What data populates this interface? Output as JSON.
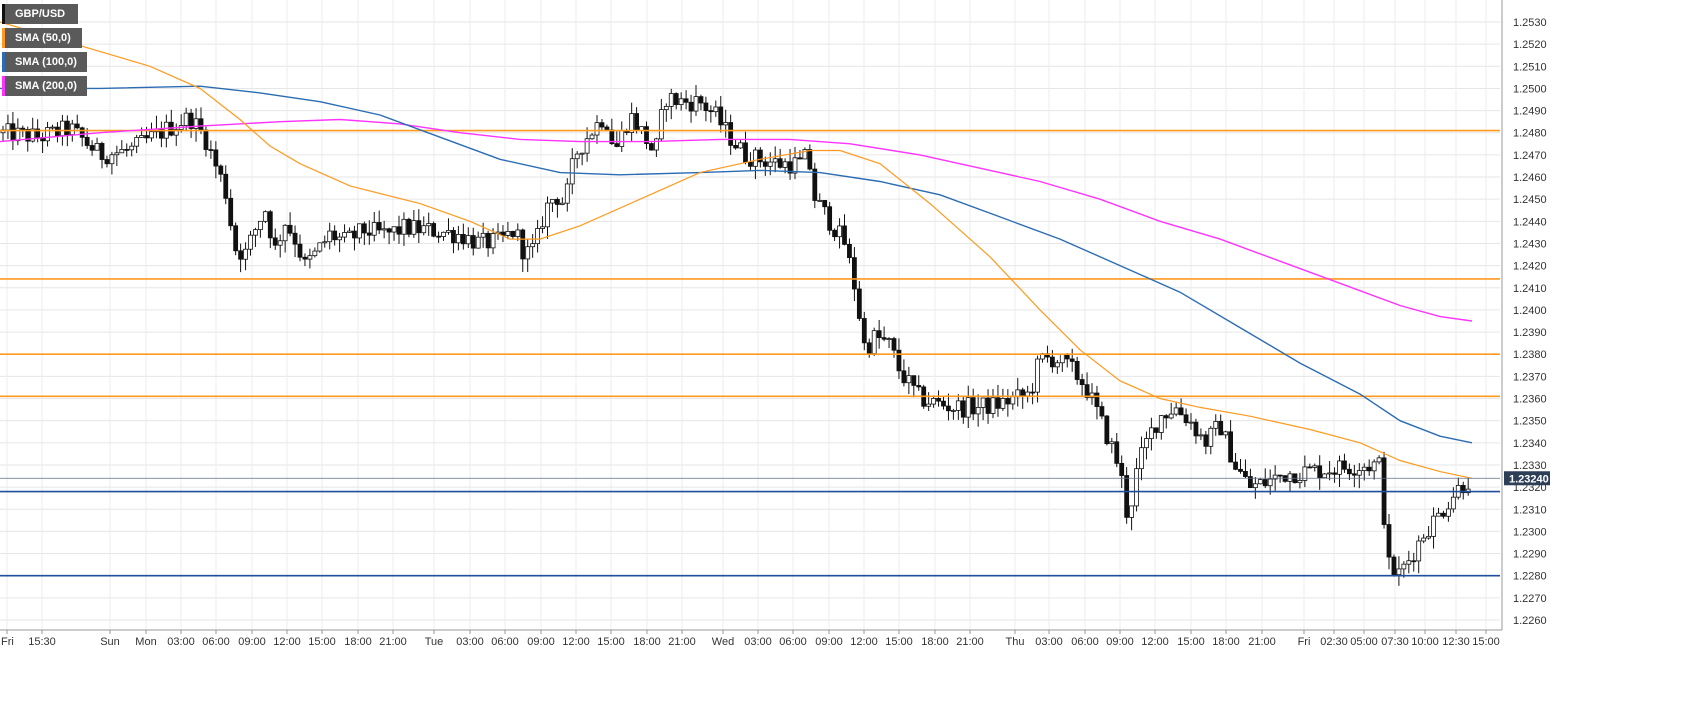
{
  "chart_data": {
    "type": "candlestick",
    "title": "",
    "series": [
      {
        "name": "GBP/USD",
        "color": "#111111"
      },
      {
        "name": "SMA (50,0)",
        "color": "#ff9a1f"
      },
      {
        "name": "SMA (100,0)",
        "color": "#2b6cb3"
      },
      {
        "name": "SMA (200,0)",
        "color": "#ff33ff"
      }
    ],
    "ylim": [
      1.226,
      1.2537
    ],
    "y_ticks": [
      "1.2260",
      "1.2270",
      "1.2280",
      "1.2290",
      "1.2300",
      "1.2310",
      "1.2320",
      "1.2330",
      "1.2340",
      "1.2350",
      "1.2360",
      "1.2370",
      "1.2380",
      "1.2390",
      "1.2400",
      "1.2410",
      "1.2420",
      "1.2430",
      "1.2440",
      "1.2450",
      "1.2460",
      "1.2470",
      "1.2480",
      "1.2490",
      "1.2500",
      "1.2510",
      "1.2520",
      "1.2530"
    ],
    "x_ticks": [
      "Fri",
      "15:30",
      "Sun",
      "Mon",
      "03:00",
      "06:00",
      "09:00",
      "12:00",
      "15:00",
      "18:00",
      "21:00",
      "Tue",
      "03:00",
      "06:00",
      "09:00",
      "12:00",
      "15:00",
      "18:00",
      "21:00",
      "Wed",
      "03:00",
      "06:00",
      "09:00",
      "12:00",
      "15:00",
      "18:00",
      "21:00",
      "Thu",
      "03:00",
      "06:00",
      "09:00",
      "12:00",
      "15:00",
      "18:00",
      "21:00",
      "Fri",
      "02:30",
      "05:00",
      "07:30",
      "10:00",
      "12:30",
      "15:00"
    ],
    "current_price": "1.23240",
    "horizontal_levels": [
      {
        "value": 1.2481,
        "color": "#ff9a1f"
      },
      {
        "value": 1.2414,
        "color": "#ff9a1f"
      },
      {
        "value": 1.238,
        "color": "#ff9a1f"
      },
      {
        "value": 1.2361,
        "color": "#ff9a1f"
      },
      {
        "value": 1.2318,
        "color": "#1f4e9e"
      },
      {
        "value": 1.228,
        "color": "#1f4e9e"
      }
    ],
    "close_path": [
      [
        0,
        1.248
      ],
      [
        40,
        1.2478
      ],
      [
        70,
        1.2482
      ],
      [
        100,
        1.247
      ],
      [
        130,
        1.2472
      ],
      [
        160,
        1.248
      ],
      [
        190,
        1.2487
      ],
      [
        205,
        1.2478
      ],
      [
        215,
        1.2466
      ],
      [
        225,
        1.2455
      ],
      [
        235,
        1.2428
      ],
      [
        245,
        1.2425
      ],
      [
        255,
        1.2436
      ],
      [
        265,
        1.2446
      ],
      [
        275,
        1.2427
      ],
      [
        285,
        1.244
      ],
      [
        295,
        1.2432
      ],
      [
        305,
        1.242
      ],
      [
        315,
        1.2425
      ],
      [
        330,
        1.2434
      ],
      [
        345,
        1.2431
      ],
      [
        365,
        1.2436
      ],
      [
        385,
        1.2434
      ],
      [
        405,
        1.2437
      ],
      [
        430,
        1.2436
      ],
      [
        460,
        1.2434
      ],
      [
        480,
        1.243
      ],
      [
        500,
        1.2431
      ],
      [
        515,
        1.2436
      ],
      [
        525,
        1.2425
      ],
      [
        535,
        1.2428
      ],
      [
        545,
        1.2445
      ],
      [
        555,
        1.2452
      ],
      [
        565,
        1.2448
      ],
      [
        575,
        1.247
      ],
      [
        590,
        1.248
      ],
      [
        605,
        1.2488
      ],
      [
        615,
        1.2472
      ],
      [
        630,
        1.2488
      ],
      [
        645,
        1.2478
      ],
      [
        655,
        1.247
      ],
      [
        665,
        1.2496
      ],
      [
        680,
        1.2494
      ],
      [
        700,
        1.2494
      ],
      [
        715,
        1.2488
      ],
      [
        730,
        1.2478
      ],
      [
        745,
        1.247
      ],
      [
        760,
        1.2468
      ],
      [
        780,
        1.2466
      ],
      [
        800,
        1.2466
      ],
      [
        808,
        1.247
      ],
      [
        815,
        1.245
      ],
      [
        830,
        1.244
      ],
      [
        845,
        1.243
      ],
      [
        855,
        1.241
      ],
      [
        865,
        1.2382
      ],
      [
        875,
        1.2388
      ],
      [
        890,
        1.2384
      ],
      [
        900,
        1.2372
      ],
      [
        910,
        1.2366
      ],
      [
        920,
        1.236
      ],
      [
        935,
        1.2358
      ],
      [
        955,
        1.2356
      ],
      [
        975,
        1.2356
      ],
      [
        995,
        1.2357
      ],
      [
        1015,
        1.236
      ],
      [
        1030,
        1.2362
      ],
      [
        1040,
        1.2378
      ],
      [
        1055,
        1.2378
      ],
      [
        1070,
        1.2374
      ],
      [
        1085,
        1.2366
      ],
      [
        1095,
        1.2356
      ],
      [
        1110,
        1.234
      ],
      [
        1120,
        1.2328
      ],
      [
        1128,
        1.2305
      ],
      [
        1138,
        1.233
      ],
      [
        1150,
        1.2344
      ],
      [
        1160,
        1.2352
      ],
      [
        1175,
        1.2356
      ],
      [
        1190,
        1.235
      ],
      [
        1205,
        1.234
      ],
      [
        1220,
        1.2348
      ],
      [
        1235,
        1.233
      ],
      [
        1250,
        1.232
      ],
      [
        1265,
        1.2322
      ],
      [
        1285,
        1.2326
      ],
      [
        1305,
        1.2327
      ],
      [
        1325,
        1.2328
      ],
      [
        1345,
        1.2329
      ],
      [
        1365,
        1.233
      ],
      [
        1380,
        1.233
      ],
      [
        1388,
        1.2285
      ],
      [
        1398,
        1.228
      ],
      [
        1410,
        1.2288
      ],
      [
        1425,
        1.23
      ],
      [
        1440,
        1.2308
      ],
      [
        1455,
        1.2318
      ],
      [
        1465,
        1.2322
      ],
      [
        1472,
        1.2324
      ]
    ],
    "sma50": [
      [
        0,
        1.253
      ],
      [
        60,
        1.2522
      ],
      [
        150,
        1.251
      ],
      [
        200,
        1.25
      ],
      [
        240,
        1.2486
      ],
      [
        270,
        1.2474
      ],
      [
        300,
        1.2466
      ],
      [
        350,
        1.2456
      ],
      [
        420,
        1.2448
      ],
      [
        470,
        1.244
      ],
      [
        510,
        1.2432
      ],
      [
        540,
        1.2432
      ],
      [
        580,
        1.2438
      ],
      [
        640,
        1.245
      ],
      [
        700,
        1.2462
      ],
      [
        760,
        1.2468
      ],
      [
        810,
        1.2472
      ],
      [
        840,
        1.2472
      ],
      [
        880,
        1.2466
      ],
      [
        930,
        1.2448
      ],
      [
        990,
        1.2424
      ],
      [
        1040,
        1.24
      ],
      [
        1080,
        1.2382
      ],
      [
        1120,
        1.2368
      ],
      [
        1160,
        1.236
      ],
      [
        1200,
        1.2356
      ],
      [
        1250,
        1.2352
      ],
      [
        1310,
        1.2346
      ],
      [
        1360,
        1.234
      ],
      [
        1400,
        1.2332
      ],
      [
        1440,
        1.2327
      ],
      [
        1472,
        1.2324
      ]
    ],
    "sma100": [
      [
        0,
        1.25
      ],
      [
        100,
        1.25
      ],
      [
        200,
        1.2501
      ],
      [
        260,
        1.2498
      ],
      [
        320,
        1.2494
      ],
      [
        380,
        1.2488
      ],
      [
        440,
        1.2478
      ],
      [
        500,
        1.2468
      ],
      [
        560,
        1.2462
      ],
      [
        620,
        1.2461
      ],
      [
        700,
        1.2462
      ],
      [
        760,
        1.2463
      ],
      [
        820,
        1.2462
      ],
      [
        880,
        1.2458
      ],
      [
        940,
        1.2452
      ],
      [
        1000,
        1.2442
      ],
      [
        1060,
        1.2432
      ],
      [
        1120,
        1.242
      ],
      [
        1180,
        1.2408
      ],
      [
        1240,
        1.2392
      ],
      [
        1300,
        1.2376
      ],
      [
        1360,
        1.2362
      ],
      [
        1400,
        1.235
      ],
      [
        1440,
        1.2343
      ],
      [
        1472,
        1.234
      ]
    ],
    "sma200": [
      [
        0,
        1.2476
      ],
      [
        100,
        1.248
      ],
      [
        200,
        1.2483
      ],
      [
        280,
        1.2485
      ],
      [
        340,
        1.2486
      ],
      [
        400,
        1.2484
      ],
      [
        460,
        1.248
      ],
      [
        520,
        1.2477
      ],
      [
        580,
        1.2476
      ],
      [
        650,
        1.2476
      ],
      [
        720,
        1.2477
      ],
      [
        790,
        1.2477
      ],
      [
        850,
        1.2475
      ],
      [
        920,
        1.247
      ],
      [
        980,
        1.2464
      ],
      [
        1040,
        1.2458
      ],
      [
        1100,
        1.245
      ],
      [
        1160,
        1.244
      ],
      [
        1220,
        1.2432
      ],
      [
        1280,
        1.2422
      ],
      [
        1340,
        1.2412
      ],
      [
        1400,
        1.2402
      ],
      [
        1440,
        1.2397
      ],
      [
        1472,
        1.2395
      ]
    ]
  }
}
